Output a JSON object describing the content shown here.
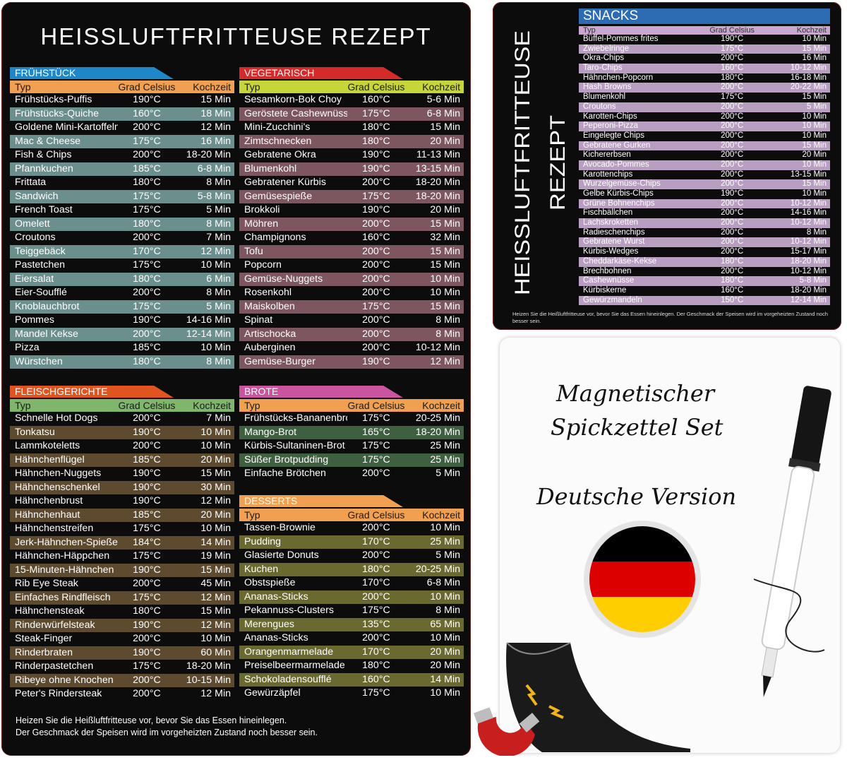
{
  "main_title": "HEISSLUFTFRITTEUSE REZEPT",
  "columns": {
    "typ": "Typ",
    "temp": "Grad Celsius",
    "time": "Kochzeit"
  },
  "sections": [
    {
      "id": "fruehstueck",
      "title": "FRÜHSTÜCK",
      "tab_color": "#1f86c8",
      "head_color": "#f0a050",
      "row_colors": [
        "#0c0c0c",
        "#6a8f8c"
      ],
      "rows": [
        [
          "Frühstücks-Puffis",
          "190°C",
          "15 Min"
        ],
        [
          "Frühstücks-Quiche",
          "160°C",
          "18 Min"
        ],
        [
          "Goldene Mini-Kartoffeln",
          "200°C",
          "12 Min"
        ],
        [
          "Mac & Cheese",
          "175°C",
          "16 Min"
        ],
        [
          "Fish & Chips",
          "200°C",
          "18-20 Min"
        ],
        [
          "Pfannkuchen",
          "185°C",
          "6-8 Min"
        ],
        [
          "Frittata",
          "180°C",
          "8 Min"
        ],
        [
          "Sandwich",
          "175°C",
          "5-8 Min"
        ],
        [
          "French Toast",
          "175°C",
          "5 Min"
        ],
        [
          "Omelett",
          "180°C",
          "8 Min"
        ],
        [
          "Croutons",
          "200°C",
          "7 Min"
        ],
        [
          "Teiggebäck",
          "170°C",
          "12 Min"
        ],
        [
          "Pastetchen",
          "175°C",
          "10 Min"
        ],
        [
          "Eiersalat",
          "180°C",
          "6 Min"
        ],
        [
          "Eier-Soufflé",
          "200°C",
          "8 Min"
        ],
        [
          "Knoblauchbrot",
          "175°C",
          "5 Min"
        ],
        [
          "Pommes",
          "190°C",
          "14-16 Min"
        ],
        [
          "Mandel Kekse",
          "200°C",
          "12-14 Min"
        ],
        [
          "Pizza",
          "185°C",
          "10 Min"
        ],
        [
          "Würstchen",
          "180°C",
          "8 Min"
        ]
      ]
    },
    {
      "id": "vegetarisch",
      "title": "VEGETARISCH",
      "tab_color": "#d42a2a",
      "head_color": "#c6d63a",
      "row_colors": [
        "#0c0c0c",
        "#7d5660"
      ],
      "rows": [
        [
          "Sesamkorn-Bok Choy",
          "160°C",
          "5-6 Min"
        ],
        [
          "Geröstete Cashewnüsse",
          "175°C",
          "6-8 Min"
        ],
        [
          "Mini-Zucchini's",
          "180°C",
          "15 Min"
        ],
        [
          "Zimtschnecken",
          "180°C",
          "20 Min"
        ],
        [
          "Gebratene Okra",
          "190°C",
          "11-13 Min"
        ],
        [
          "Blumenkohl",
          "190°C",
          "13-15 Min"
        ],
        [
          "Gebratener Kürbis",
          "200°C",
          "18-20 Min"
        ],
        [
          "Gemüsespieße",
          "175°C",
          "18-20 Min"
        ],
        [
          "Brokkoli",
          "190°C",
          "20 Min"
        ],
        [
          "Möhren",
          "200°C",
          "15 Min"
        ],
        [
          "Champignons",
          "160°C",
          "32 Min"
        ],
        [
          "Tofu",
          "200°C",
          "15 Min"
        ],
        [
          "Popcorn",
          "200°C",
          "15 Min"
        ],
        [
          "Gemüse-Nuggets",
          "200°C",
          "10 Min"
        ],
        [
          "Rosenkohl",
          "200°C",
          "10 Min"
        ],
        [
          "Maiskolben",
          "175°C",
          "15 Min"
        ],
        [
          "Spinat",
          "200°C",
          "8 Min"
        ],
        [
          "Artischocka",
          "200°C",
          "8 Min"
        ],
        [
          "Auberginen",
          "200°C",
          "10-12 Min"
        ],
        [
          "Gemüse-Burger",
          "190°C",
          "12 Min"
        ]
      ]
    },
    {
      "id": "fleischgerichte",
      "title": "FLEISCHGERICHTE",
      "tab_color": "#e0551f",
      "head_color": "#7fb66b",
      "row_colors": [
        "#0c0c0c",
        "#5e4a2f"
      ],
      "rows": [
        [
          "Schnelle Hot Dogs",
          "200°C",
          "7 Min"
        ],
        [
          "Tonkatsu",
          "190°C",
          "10 Min"
        ],
        [
          "Lammkoteletts",
          "200°C",
          "10 Min"
        ],
        [
          "Hähnchenflügel",
          "185°C",
          "20 Min"
        ],
        [
          "Hähnchen-Nuggets",
          "190°C",
          "15 Min"
        ],
        [
          "Hähnchenschenkel",
          "190°C",
          "30 Min"
        ],
        [
          "Hähnchenbrust",
          "190°C",
          "12 Min"
        ],
        [
          "Hähnchenhaut",
          "185°C",
          "20 Min"
        ],
        [
          "Hähnchenstreifen",
          "175°C",
          "10 Min"
        ],
        [
          "Jerk-Hähnchen-Spieße",
          "184°C",
          "14 Min"
        ],
        [
          "Hähnchen-Häppchen",
          "175°C",
          "19 Min"
        ],
        [
          "15-Minuten-Hähnchen",
          "190°C",
          "15 Min"
        ],
        [
          "Rib Eye Steak",
          "200°C",
          "45 Min"
        ],
        [
          "Einfaches Rindfleisch",
          "175°C",
          "12 Min"
        ],
        [
          "Hähnchensteak",
          "180°C",
          "15 Min"
        ],
        [
          "Rinderwürfelsteak",
          "190°C",
          "12 Min"
        ],
        [
          "Steak-Finger",
          "200°C",
          "10 Min"
        ],
        [
          "Rinderbraten",
          "190°C",
          "60 Min"
        ],
        [
          "Rinderpastetchen",
          "175°C",
          "18-20 Min"
        ],
        [
          "Ribeye ohne Knochen",
          "200°C",
          "10-15 Min"
        ],
        [
          "Peter's Rindersteak",
          "200°C",
          "12 Min"
        ]
      ]
    },
    {
      "id": "brote",
      "title": "BROTE",
      "tab_color": "#c8559e",
      "head_color": "#f0a050",
      "row_colors": [
        "#0c0c0c",
        "#3f5f41"
      ],
      "rows": [
        [
          "Frühstücks-Bananenbrot",
          "175°C",
          "20-25 Min"
        ],
        [
          "Mango-Brot",
          "165°C",
          "18-20 Min"
        ],
        [
          "Kürbis-Sultaninen-Brot",
          "175°C",
          "25 Min"
        ],
        [
          "Süßer Brotpudding",
          "175°C",
          "25 Min"
        ],
        [
          "Einfache Brötchen",
          "200°C",
          "5 Min"
        ]
      ]
    },
    {
      "id": "desserts",
      "title": "DESSERTS",
      "tab_color": "#f0a050",
      "head_color": "#f0a050",
      "row_colors": [
        "#0c0c0c",
        "#6a6a30"
      ],
      "rows": [
        [
          "Tassen-Brownie",
          "200°C",
          "10 Min"
        ],
        [
          "Pudding",
          "170°C",
          "25 Min"
        ],
        [
          "Glasierte Donuts",
          "200°C",
          "5 Min"
        ],
        [
          "Kuchen",
          "180°C",
          "20-25 Min"
        ],
        [
          "Obstspieße",
          "170°C",
          "6-8 Min"
        ],
        [
          "Ananas-Sticks",
          "200°C",
          "10 Min"
        ],
        [
          "Pekannuss-Clusters",
          "175°C",
          "8 Min"
        ],
        [
          "Merengues",
          "135°C",
          "65 Min"
        ],
        [
          "Ananas-Sticks",
          "200°C",
          "10 Min"
        ],
        [
          "Orangenmarmelade",
          "170°C",
          "20 Min"
        ],
        [
          "Preiselbeermarmelade",
          "180°C",
          "20 Min"
        ],
        [
          "Schokoladensoufflé",
          "160°C",
          "14 Min"
        ],
        [
          "Gewürzäpfel",
          "175°C",
          "10 Min"
        ]
      ]
    }
  ],
  "main_footer": [
    "Heizen Sie die Heißluftfritteuse vor, bevor Sie das Essen hineinlegen.",
    "Der Geschmack der Speisen wird im vorgeheizten Zustand noch besser sein."
  ],
  "snacks": {
    "vertical_title_line1": "HEISSLUFTFRITTEUSE",
    "vertical_title_line2": "REZEPT",
    "title": "SNACKS",
    "tab_color": "#2d6cb2",
    "alt_color": "#b89ec0",
    "columns": {
      "typ": "Typ",
      "temp": "Grad Celsius",
      "time": "Kochzeit"
    },
    "rows": [
      [
        "Büffel-Pommes frites",
        "190°C",
        "10 Min"
      ],
      [
        "Zwiebelringe",
        "175°C",
        "15 Min"
      ],
      [
        "Okra-Chips",
        "200°C",
        "16 Min"
      ],
      [
        "Taro-Chips",
        "160°C",
        "10-12 Min"
      ],
      [
        "Hähnchen-Popcorn",
        "180°C",
        "16-18 Min"
      ],
      [
        "Hash Browns",
        "200°C",
        "20-22 Min"
      ],
      [
        "Blumenkohl",
        "175°C",
        "15 Min"
      ],
      [
        "Croutons",
        "200°C",
        "5 Min"
      ],
      [
        "Karotten-Chips",
        "200°C",
        "10 Min"
      ],
      [
        "Peperoni-Pizza",
        "200°C",
        "10 Min"
      ],
      [
        "Eingelegte Chips",
        "200°C",
        "10 Min"
      ],
      [
        "Gebratene Gurken",
        "200°C",
        "15 Min"
      ],
      [
        "Kichererbsen",
        "200°C",
        "20 Min"
      ],
      [
        "Avocado-Pommes",
        "200°C",
        "10 Min"
      ],
      [
        "Karottenchips",
        "200°C",
        "13-15 Min"
      ],
      [
        "Wurzelgemüse-Chips",
        "200°C",
        "15 Min"
      ],
      [
        "Gelbe Kürbis-Chips",
        "190°C",
        "10 Min"
      ],
      [
        "Grüne Bohnenchips",
        "200°C",
        "10-12 Min"
      ],
      [
        "Fischbällchen",
        "200°C",
        "14-16 Min"
      ],
      [
        "Lachskroketten",
        "200°C",
        "10-12 Min"
      ],
      [
        "Radieschenchips",
        "200°C",
        "8 Min"
      ],
      [
        "Gebratene Wurst",
        "200°C",
        "10-12 Min"
      ],
      [
        "Kürbis-Wedges",
        "200°C",
        "15-17 Min"
      ],
      [
        "Cheddarkäse-Kekse",
        "180°C",
        "18-20 Min"
      ],
      [
        "Brechbohnen",
        "200°C",
        "10-12 Min"
      ],
      [
        "Cashewnüsse",
        "180°C",
        "5-8 Min"
      ],
      [
        "Kürbiskerne",
        "160°C",
        "18-20 Min"
      ],
      [
        "Gewürzmandeln",
        "150°C",
        "12-14 Min"
      ]
    ],
    "footer": "Heizen Sie die Heißluftfritteuse vor, bevor Sie das Essen hineinlegen. Der Geschmack der Speisen wird im vorgeheizten Zustand noch besser sein."
  },
  "whiteboard": {
    "line1": "Magnetischer",
    "line2": "Spickzettel Set",
    "line3": "Deutsche Version"
  },
  "flag_colors": [
    "#000000",
    "#dd0000",
    "#ffce00"
  ]
}
